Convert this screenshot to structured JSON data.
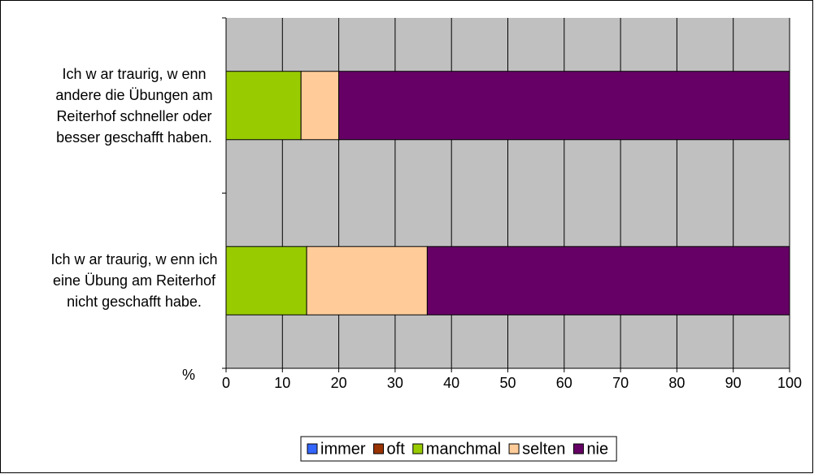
{
  "chart_data": {
    "type": "bar",
    "orientation": "horizontal",
    "stacked": true,
    "categories": [
      "Ich w ar traurig, w enn andere die Übungen am Reiterhof schneller oder besser geschafft haben.",
      "Ich w ar traurig, w enn ich eine Übung am Reiterhof nicht geschafft habe."
    ],
    "series": [
      {
        "name": "immer",
        "color": "#3366ff",
        "values": [
          0,
          0
        ]
      },
      {
        "name": "oft",
        "color": "#993300",
        "values": [
          0,
          0
        ]
      },
      {
        "name": "manchmal",
        "color": "#99cc00",
        "values": [
          13.3,
          14.3
        ]
      },
      {
        "name": "selten",
        "color": "#ffcc99",
        "values": [
          6.7,
          21.4
        ]
      },
      {
        "name": "nie",
        "color": "#660066",
        "values": [
          80,
          64.3
        ]
      }
    ],
    "x_label": "%",
    "xlim": [
      0,
      100
    ],
    "xticks": [
      0,
      10,
      20,
      30,
      40,
      50,
      60,
      70,
      80,
      90,
      100
    ],
    "grid": true,
    "legend": "bottom"
  }
}
